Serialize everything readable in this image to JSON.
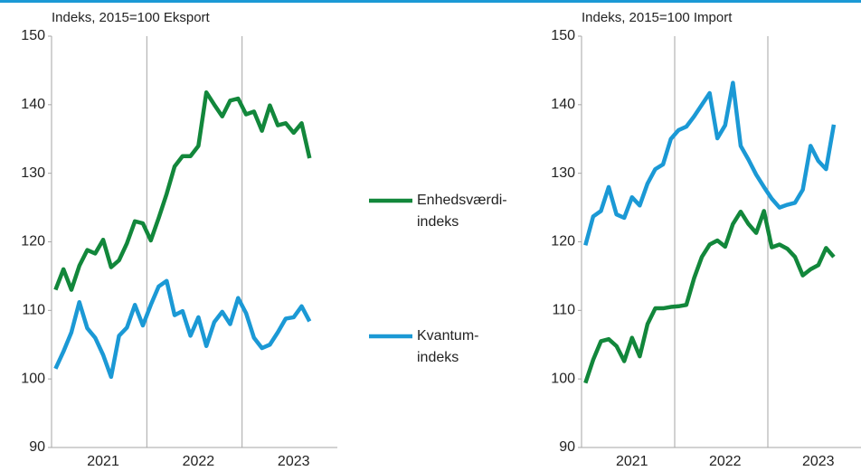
{
  "chart_data": [
    {
      "type": "line",
      "title": "Indeks, 2015=100 Eksport",
      "categories": [
        null,
        null,
        null,
        null,
        null,
        null,
        "2021",
        null,
        null,
        null,
        null,
        null,
        null,
        null,
        null,
        null,
        null,
        null,
        "2022",
        null,
        null,
        null,
        null,
        null,
        null,
        null,
        null,
        null,
        null,
        null,
        "2023",
        null,
        null
      ],
      "ylim": [
        90,
        150
      ],
      "yticks": [
        90,
        100,
        110,
        120,
        130,
        140,
        150
      ],
      "series": [
        {
          "name": "Enhedsværdi-\nindeks",
          "color": "#12873b",
          "values": [
            113,
            116,
            113,
            116.5,
            118.8,
            118.3,
            120.3,
            116.3,
            117.3,
            119.8,
            123,
            122.7,
            120.2,
            123.5,
            127,
            131,
            132.5,
            132.5,
            134,
            141.8,
            140,
            138.3,
            140.6,
            140.9,
            138.6,
            139,
            136.2,
            139.9,
            137,
            137.3,
            135.9,
            137.3,
            132.2
          ]
        },
        {
          "name": "Kvantum-\nindeks",
          "color": "#1b99d5",
          "values": [
            101.5,
            104,
            106.8,
            111.2,
            107.4,
            106,
            103.5,
            100.3,
            106.3,
            107.5,
            110.8,
            107.8,
            110.8,
            113.5,
            114.3,
            109.3,
            109.9,
            106.3,
            109,
            104.8,
            108.3,
            109.8,
            108,
            111.8,
            109.6,
            106,
            104.5,
            105,
            106.8,
            108.8,
            109,
            110.6,
            108.4
          ]
        }
      ]
    },
    {
      "type": "line",
      "title": "Indeks, 2015=100 Import",
      "categories": [
        null,
        null,
        null,
        null,
        null,
        null,
        "2021",
        null,
        null,
        null,
        null,
        null,
        null,
        null,
        null,
        null,
        null,
        null,
        "2022",
        null,
        null,
        null,
        null,
        null,
        null,
        null,
        null,
        null,
        null,
        null,
        "2023",
        null,
        null
      ],
      "ylim": [
        90,
        150
      ],
      "yticks": [
        90,
        100,
        110,
        120,
        130,
        140,
        150
      ],
      "series": [
        {
          "color": "#12873b",
          "values": [
            99.4,
            102.8,
            105.5,
            105.8,
            104.8,
            102.6,
            106,
            103.3,
            108,
            110.3,
            110.3,
            110.5,
            110.6,
            110.8,
            114.7,
            117.8,
            119.6,
            120.2,
            119.3,
            122.6,
            124.4,
            122.6,
            121.3,
            124.5,
            119.2,
            119.6,
            119,
            117.8,
            115.1,
            116,
            116.6,
            119.1,
            117.8
          ]
        },
        {
          "color": "#1b99d5",
          "values": [
            119.5,
            123.7,
            124.5,
            128,
            124,
            123.5,
            126.5,
            125.3,
            128.5,
            130.6,
            131.3,
            135,
            136.3,
            136.8,
            138.3,
            140,
            141.7,
            135.1,
            137,
            143.2,
            134,
            132,
            129.8,
            128,
            126.3,
            125,
            125.4,
            125.7,
            127.6,
            134,
            131.8,
            130.6,
            137.1
          ]
        }
      ]
    }
  ]
}
